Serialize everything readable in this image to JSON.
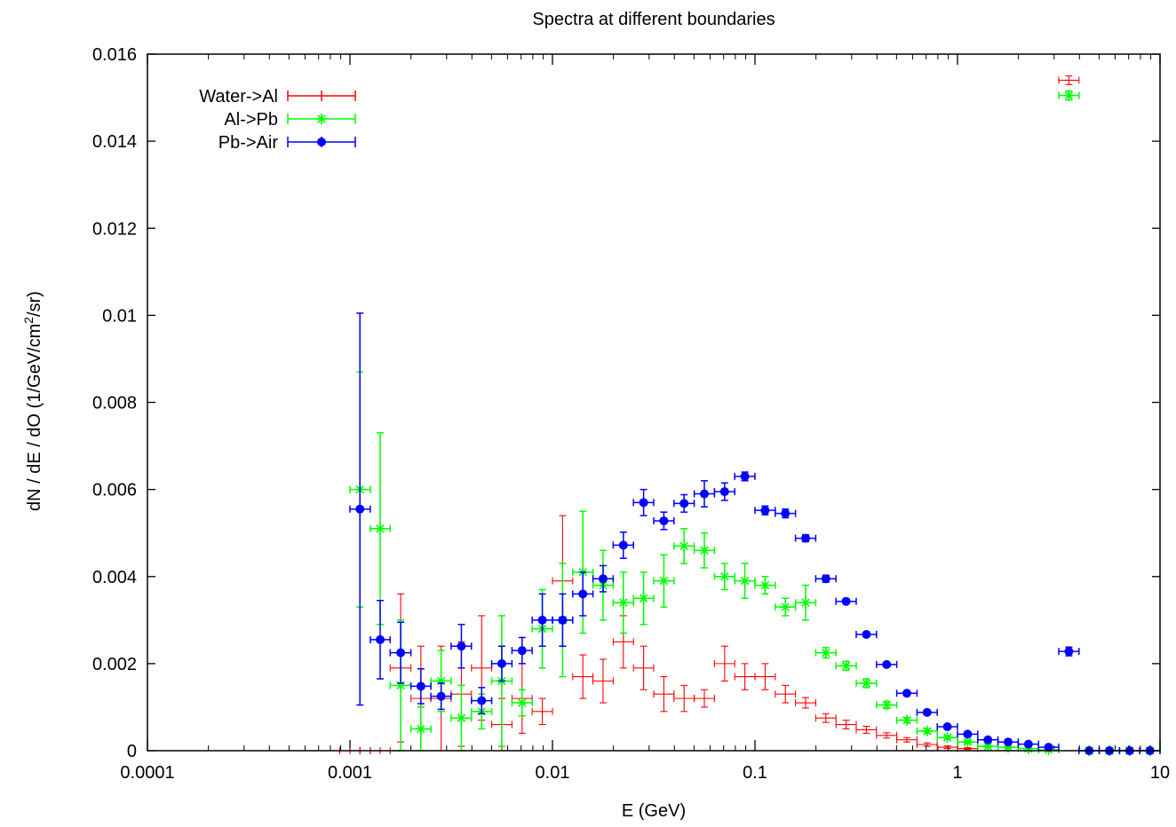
{
  "chart_data": {
    "type": "scatter",
    "title": "Spectra at different boundaries",
    "xlabel": "E (GeV)",
    "ylabel_parts": [
      "dN / dE / dO  (1/GeV/cm",
      "2",
      "/sr)"
    ],
    "xscale": "log",
    "xlim": [
      0.0001,
      10
    ],
    "ylim": [
      0,
      0.016
    ],
    "x_ticks": [
      {
        "v": 0.0001,
        "label": "0.0001"
      },
      {
        "v": 0.001,
        "label": "0.001"
      },
      {
        "v": 0.01,
        "label": "0.01"
      },
      {
        "v": 0.1,
        "label": "0.1"
      },
      {
        "v": 1,
        "label": "1"
      },
      {
        "v": 10,
        "label": "10"
      }
    ],
    "y_ticks": [
      {
        "v": 0,
        "label": "0"
      },
      {
        "v": 0.002,
        "label": "0.002"
      },
      {
        "v": 0.004,
        "label": "0.004"
      },
      {
        "v": 0.006,
        "label": "0.006"
      },
      {
        "v": 0.008,
        "label": "0.008"
      },
      {
        "v": 0.01,
        "label": "0.01"
      },
      {
        "v": 0.012,
        "label": "0.012"
      },
      {
        "v": 0.014,
        "label": "0.014"
      },
      {
        "v": 0.016,
        "label": "0.016"
      }
    ],
    "legend_position": "top-left",
    "grid": false,
    "series": [
      {
        "name": "Water->Al",
        "color": "#ff0000",
        "marker": "plus",
        "points": [
          [
            0.001,
            0,
            0,
            0.00089,
            0.00112
          ],
          [
            0.00112,
            0,
            0,
            0.001,
            0.00126
          ],
          [
            0.00126,
            0,
            0,
            0.00112,
            0.00141
          ],
          [
            0.00141,
            0,
            0,
            0.00126,
            0.00158
          ],
          [
            0.00178,
            0.0019,
            0.0017,
            0.00158,
            0.002
          ],
          [
            0.00224,
            0.0012,
            0.0012,
            0.002,
            0.00251
          ],
          [
            0.00282,
            0.0012,
            0.0012,
            0.00251,
            0.00316
          ],
          [
            0.00355,
            0.0013,
            0.0012,
            0.00316,
            0.00398
          ],
          [
            0.00447,
            0.0019,
            0.0012,
            0.00398,
            0.00501
          ],
          [
            0.00562,
            0.0006,
            0.0006,
            0.00501,
            0.00631
          ],
          [
            0.00708,
            0.0012,
            0.0008,
            0.00631,
            0.00794
          ],
          [
            0.00891,
            0.0009,
            0.0003,
            0.00794,
            0.01
          ],
          [
            0.01122,
            0.0039,
            0.0015,
            0.01,
            0.01259
          ],
          [
            0.01413,
            0.0017,
            0.0005,
            0.01259,
            0.01585
          ],
          [
            0.01778,
            0.0016,
            0.0005,
            0.01585,
            0.01995
          ],
          [
            0.02239,
            0.0025,
            0.0006,
            0.01995,
            0.02512
          ],
          [
            0.02818,
            0.0019,
            0.0005,
            0.02512,
            0.03162
          ],
          [
            0.03548,
            0.0013,
            0.0004,
            0.03162,
            0.03981
          ],
          [
            0.04467,
            0.0012,
            0.0003,
            0.03981,
            0.05012
          ],
          [
            0.05623,
            0.0012,
            0.0002,
            0.05012,
            0.0631
          ],
          [
            0.07079,
            0.002,
            0.0004,
            0.0631,
            0.07943
          ],
          [
            0.08913,
            0.0017,
            0.0003,
            0.07943,
            0.1
          ],
          [
            0.1122,
            0.0017,
            0.0003,
            0.1,
            0.1259
          ],
          [
            0.1413,
            0.0013,
            0.0002,
            0.1259,
            0.1585
          ],
          [
            0.1778,
            0.0011,
            0.00012,
            0.1585,
            0.1995
          ],
          [
            0.2239,
            0.00075,
            0.0001,
            0.1995,
            0.2512
          ],
          [
            0.2818,
            0.0006,
            0.0001,
            0.2512,
            0.3162
          ],
          [
            0.3548,
            0.00048,
            8e-05,
            0.3162,
            0.3981
          ],
          [
            0.4467,
            0.00035,
            6e-05,
            0.3981,
            0.5012
          ],
          [
            0.5623,
            0.00025,
            5e-05,
            0.5012,
            0.631
          ],
          [
            0.7079,
            0.00014,
            4e-05,
            0.631,
            0.7943
          ],
          [
            0.8913,
            8e-05,
            3e-05,
            0.7943,
            1
          ],
          [
            1.122,
            5e-05,
            2e-05,
            1,
            1.259
          ],
          [
            3.548,
            0.0154,
            0.0001,
            3.162,
            3.981
          ]
        ]
      },
      {
        "name": "Al->Pb",
        "color": "#00ff00",
        "marker": "star",
        "points": [
          [
            0.00112,
            0.006,
            0.0027,
            0.001,
            0.00126
          ],
          [
            0.00141,
            0.0051,
            0.0022,
            0.00126,
            0.00158
          ],
          [
            0.00178,
            0.0015,
            0.0015,
            0.00158,
            0.002
          ],
          [
            0.00224,
            0.0005,
            0.0005,
            0.002,
            0.00251
          ],
          [
            0.00282,
            0.0016,
            0.0007,
            0.00251,
            0.00316
          ],
          [
            0.00355,
            0.00075,
            0.00075,
            0.00316,
            0.00398
          ],
          [
            0.00447,
            0.0009,
            0.0004,
            0.00398,
            0.00501
          ],
          [
            0.00562,
            0.0016,
            0.0015,
            0.00501,
            0.00631
          ],
          [
            0.00708,
            0.0011,
            0.0003,
            0.00631,
            0.00794
          ],
          [
            0.00891,
            0.0028,
            0.0009,
            0.00794,
            0.01
          ],
          [
            0.01122,
            0.003,
            0.0013,
            0.01,
            0.01259
          ],
          [
            0.01413,
            0.0041,
            0.0014,
            0.01259,
            0.01585
          ],
          [
            0.01778,
            0.0038,
            0.0008,
            0.01585,
            0.01995
          ],
          [
            0.02239,
            0.0034,
            0.0007,
            0.01995,
            0.02512
          ],
          [
            0.02818,
            0.0035,
            0.0006,
            0.02512,
            0.03162
          ],
          [
            0.03548,
            0.0039,
            0.0006,
            0.03162,
            0.03981
          ],
          [
            0.04467,
            0.0047,
            0.0004,
            0.03981,
            0.05012
          ],
          [
            0.05623,
            0.0046,
            0.0004,
            0.05012,
            0.0631
          ],
          [
            0.07079,
            0.004,
            0.0003,
            0.0631,
            0.07943
          ],
          [
            0.08913,
            0.0039,
            0.0004,
            0.07943,
            0.1
          ],
          [
            0.1122,
            0.0038,
            0.0002,
            0.1,
            0.1259
          ],
          [
            0.1413,
            0.0033,
            0.0002,
            0.1259,
            0.1585
          ],
          [
            0.1778,
            0.0034,
            0.0004,
            0.1585,
            0.1995
          ],
          [
            0.2239,
            0.00225,
            0.00012,
            0.1995,
            0.2512
          ],
          [
            0.2818,
            0.00195,
            0.0001,
            0.2512,
            0.3162
          ],
          [
            0.3548,
            0.00155,
            0.0001,
            0.3162,
            0.3981
          ],
          [
            0.4467,
            0.00105,
            8e-05,
            0.3981,
            0.5012
          ],
          [
            0.5623,
            0.0007,
            6e-05,
            0.5012,
            0.631
          ],
          [
            0.7079,
            0.00045,
            5e-05,
            0.631,
            0.7943
          ],
          [
            0.8913,
            0.0003,
            4e-05,
            0.7943,
            1
          ],
          [
            1.122,
            0.0002,
            3e-05,
            1,
            1.259
          ],
          [
            1.413,
            0.0001,
            2e-05,
            1.259,
            1.585
          ],
          [
            1.778,
            8e-05,
            2e-05,
            1.585,
            1.995
          ],
          [
            2.239,
            5e-05,
            1e-05,
            1.995,
            2.512
          ],
          [
            2.818,
            2e-05,
            1e-05,
            2.512,
            3.162
          ],
          [
            3.548,
            0.01505,
            0.0001,
            3.162,
            3.981
          ],
          [
            4.467,
            0,
            0,
            3.981,
            5.012
          ],
          [
            5.623,
            0,
            0,
            5.012,
            6.31
          ],
          [
            7.079,
            0,
            0,
            6.31,
            7.943
          ],
          [
            8.913,
            0,
            0,
            7.943,
            10
          ]
        ]
      },
      {
        "name": "Pb->Air",
        "color": "#0000ff",
        "marker": "circle",
        "points": [
          [
            0.00112,
            0.00555,
            0.0045,
            0.001,
            0.00126
          ],
          [
            0.00141,
            0.00255,
            0.0009,
            0.00126,
            0.00158
          ],
          [
            0.00178,
            0.00225,
            0.0007,
            0.00158,
            0.002
          ],
          [
            0.00224,
            0.00148,
            0.0004,
            0.002,
            0.00251
          ],
          [
            0.00282,
            0.00125,
            0.0003,
            0.00251,
            0.00316
          ],
          [
            0.00355,
            0.0024,
            0.0005,
            0.00316,
            0.00398
          ],
          [
            0.00447,
            0.00115,
            0.0003,
            0.00398,
            0.00501
          ],
          [
            0.00562,
            0.002,
            0.0004,
            0.00501,
            0.00631
          ],
          [
            0.00708,
            0.0023,
            0.0003,
            0.00631,
            0.00794
          ],
          [
            0.00891,
            0.003,
            0.0006,
            0.00794,
            0.01
          ],
          [
            0.01122,
            0.003,
            0.0006,
            0.01,
            0.01259
          ],
          [
            0.01413,
            0.0036,
            0.0005,
            0.01259,
            0.01585
          ],
          [
            0.01778,
            0.00395,
            0.0003,
            0.01585,
            0.01995
          ],
          [
            0.02239,
            0.00472,
            0.0003,
            0.01995,
            0.02512
          ],
          [
            0.02818,
            0.0057,
            0.0003,
            0.02512,
            0.03162
          ],
          [
            0.03548,
            0.00528,
            0.0002,
            0.03162,
            0.03981
          ],
          [
            0.04467,
            0.00568,
            0.0002,
            0.03981,
            0.05012
          ],
          [
            0.05623,
            0.0059,
            0.0003,
            0.05012,
            0.0631
          ],
          [
            0.07079,
            0.00595,
            0.0002,
            0.0631,
            0.07943
          ],
          [
            0.08913,
            0.0063,
            0.0001,
            0.07943,
            0.1
          ],
          [
            0.1122,
            0.00552,
            0.0001,
            0.1,
            0.1259
          ],
          [
            0.1413,
            0.00545,
            0.0001,
            0.1259,
            0.1585
          ],
          [
            0.1778,
            0.00488,
            8e-05,
            0.1585,
            0.1995
          ],
          [
            0.2239,
            0.00395,
            8e-05,
            0.1995,
            0.2512
          ],
          [
            0.2818,
            0.00343,
            6e-05,
            0.2512,
            0.3162
          ],
          [
            0.3548,
            0.00267,
            5e-05,
            0.3162,
            0.3981
          ],
          [
            0.4467,
            0.00198,
            5e-05,
            0.3981,
            0.5012
          ],
          [
            0.5623,
            0.00132,
            4e-05,
            0.5012,
            0.631
          ],
          [
            0.7079,
            0.00088,
            3e-05,
            0.631,
            0.7943
          ],
          [
            0.8913,
            0.00055,
            3e-05,
            0.7943,
            1
          ],
          [
            1.122,
            0.00038,
            2e-05,
            1,
            1.259
          ],
          [
            1.413,
            0.00025,
            2e-05,
            1.259,
            1.585
          ],
          [
            1.778,
            0.0002,
            2e-05,
            1.585,
            1.995
          ],
          [
            2.239,
            0.00015,
            1e-05,
            1.995,
            2.512
          ],
          [
            2.818,
            8e-05,
            1e-05,
            2.512,
            3.162
          ],
          [
            3.548,
            0.00228,
            0.0001,
            3.162,
            3.981
          ],
          [
            4.467,
            0,
            0,
            3.981,
            5.012
          ],
          [
            5.623,
            0,
            0,
            5.012,
            6.31
          ],
          [
            7.079,
            0,
            0,
            6.31,
            7.943
          ],
          [
            8.913,
            0,
            0,
            7.943,
            10
          ]
        ]
      }
    ]
  }
}
